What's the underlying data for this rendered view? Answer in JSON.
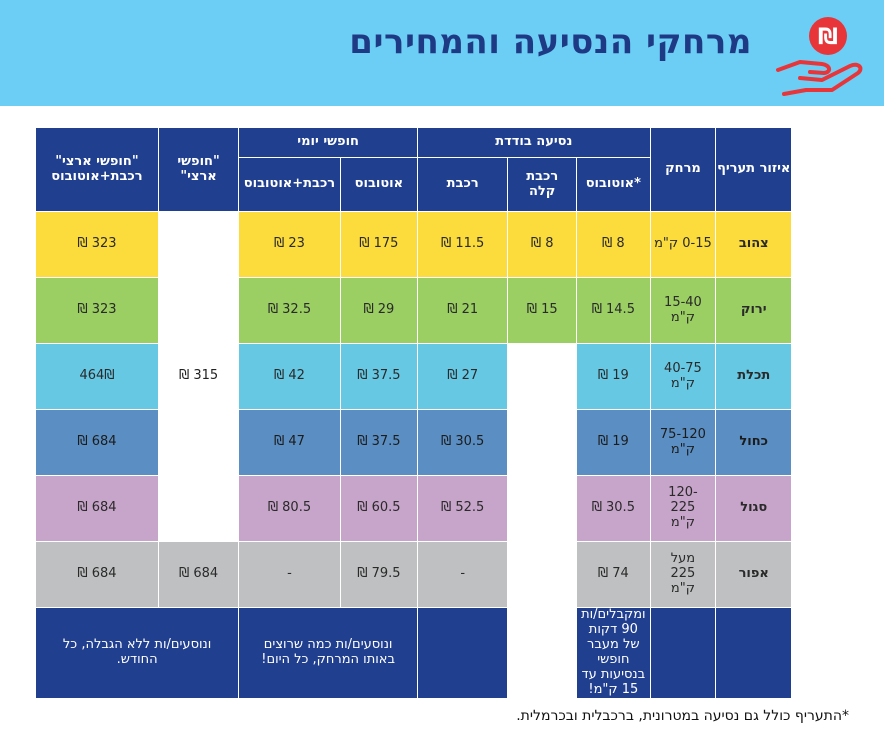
{
  "header": {
    "title": "מרחקי הנסיעה והמחירים",
    "logo_glyph": "₪",
    "bg_color": "#6ccdf5",
    "title_color": "#1f3a85",
    "logo_color": "#e8353a"
  },
  "table": {
    "headers": {
      "zone": "איזור תעריף",
      "distance": "מרחק",
      "single_group": "נסיעה בודדת",
      "daily_group": "חופשי יומי",
      "free_land": "\"חופשי ארצי\"",
      "free_land_combo": "\"חופשי ארצי\" רכבת+אוטובוס",
      "single_bus": "אוטובוס*",
      "single_light_rail": "רכבת קלה",
      "single_train": "רכבת",
      "daily_bus": "אוטובוס",
      "daily_combo": "רכבת+אוטובוס"
    },
    "rows": [
      {
        "zone": "צהוב",
        "distance": "0-15 ק\"מ",
        "single_bus": "8 ₪",
        "single_light_rail": "8 ₪",
        "single_train": "11.5 ₪",
        "daily_bus": "175 ₪",
        "daily_combo": "23 ₪",
        "free_land_combo": "323 ₪"
      },
      {
        "zone": "ירוק",
        "distance": "15-40 ק\"מ",
        "single_bus": "14.5 ₪",
        "single_light_rail": "15 ₪",
        "single_train": "21 ₪",
        "daily_bus": "29 ₪",
        "daily_combo": "32.5 ₪",
        "free_land_combo": "323 ₪"
      },
      {
        "zone": "תכלת",
        "distance": "40-75 ק\"מ",
        "single_bus": "19 ₪",
        "single_train": "27 ₪",
        "daily_bus": "37.5 ₪",
        "daily_combo": "42 ₪",
        "free_land_combo": "464₪"
      },
      {
        "zone": "כחול",
        "distance": "75-120 ק\"מ",
        "single_bus": "19 ₪",
        "single_train": "30.5 ₪",
        "daily_bus": "37.5 ₪",
        "daily_combo": "47 ₪",
        "free_land_combo": "684 ₪"
      },
      {
        "zone": "סגול",
        "distance": "120-225 ק\"מ",
        "single_bus": "30.5 ₪",
        "single_train": "52.5 ₪",
        "daily_bus": "60.5 ₪",
        "daily_combo": "80.5 ₪",
        "free_land_combo": "684 ₪"
      },
      {
        "zone": "אפור",
        "distance": "מעל 225 ק\"מ",
        "single_bus": "74 ₪",
        "single_train": "-",
        "daily_bus": "79.5 ₪",
        "daily_combo": "-",
        "free_land": "684 ₪",
        "free_land_combo": "684 ₪"
      }
    ],
    "free_land_merged": "315 ₪",
    "footer": {
      "single_bus_note": "ומקבלים/ות 90 דקות של מעבר חופשי בנסיעות עד 15 ק\"מ!",
      "daily_note": "ונוסעים/ות כמה שרוצים באותו המרחק, כל היום!",
      "free_land_note": "ונוסעים/ות ללא הגבלה, כל החודש."
    }
  },
  "footnote": "*התעריף כולל גם נסיעה במטרונית, ברכבלית ובכרמלית.",
  "colors": {
    "header_cell": "#213f8f",
    "yellow": "#fcdc3d",
    "green": "#9bce63",
    "cyan": "#67c8e4",
    "blue": "#5b8fc3",
    "purple": "#c7a4c9",
    "gray": "#bfc0c1"
  }
}
